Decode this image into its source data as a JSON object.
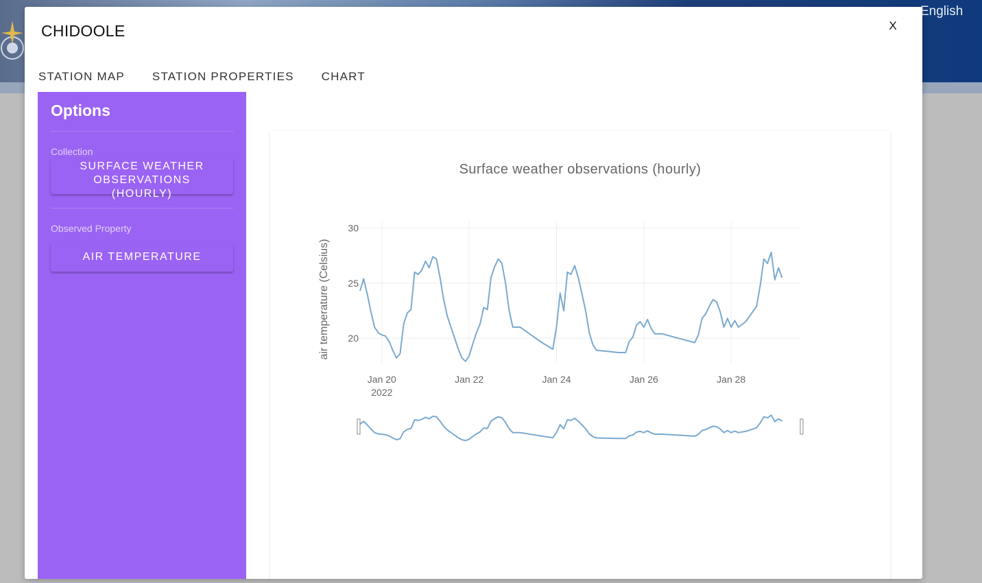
{
  "background": {
    "language": "English"
  },
  "modal": {
    "title": "CHIDOOLE",
    "close_label": "X",
    "tabs": [
      {
        "label": "STATION MAP"
      },
      {
        "label": "STATION PROPERTIES"
      },
      {
        "label": "CHART"
      }
    ]
  },
  "sidebar": {
    "title": "Options",
    "collection_label": "Collection",
    "collection_value": "SURFACE WEATHER OBSERVATIONS (HOURLY)",
    "property_label": "Observed Property",
    "property_value": "AIR TEMPERATURE"
  },
  "colors": {
    "sidebar": "#9b63f3",
    "line": "#7aa9cf"
  },
  "chart_data": {
    "type": "line",
    "title": "Surface weather observations (hourly)",
    "xlabel": "",
    "ylabel": "air temperature (Celsius)",
    "x_ticks": [
      {
        "value": "2022-01-20",
        "label": "Jan 20",
        "sublabel": "2022"
      },
      {
        "value": "2022-01-22",
        "label": "Jan 22",
        "sublabel": ""
      },
      {
        "value": "2022-01-24",
        "label": "Jan 24",
        "sublabel": ""
      },
      {
        "value": "2022-01-26",
        "label": "Jan 26",
        "sublabel": ""
      },
      {
        "value": "2022-01-28",
        "label": "Jan 28",
        "sublabel": ""
      }
    ],
    "y_ticks": [
      20,
      25,
      30
    ],
    "xlim": [
      "2022-01-19T12:00",
      "2022-01-29T14:00"
    ],
    "ylim": [
      17.7,
      30.6
    ],
    "grid": true,
    "has_range_slider": true,
    "series": [
      {
        "values": [
          [
            "2022-01-19T12:00",
            24.3
          ],
          [
            "2022-01-19T14:00",
            25.4
          ],
          [
            "2022-01-19T16:00",
            24.0
          ],
          [
            "2022-01-19T18:00",
            22.4
          ],
          [
            "2022-01-19T20:00",
            21.0
          ],
          [
            "2022-01-19T22:00",
            20.5
          ],
          [
            "2022-01-20T00:00",
            20.3
          ],
          [
            "2022-01-20T02:00",
            20.2
          ],
          [
            "2022-01-20T04:00",
            19.7
          ],
          [
            "2022-01-20T06:00",
            18.9
          ],
          [
            "2022-01-20T08:00",
            18.2
          ],
          [
            "2022-01-20T10:00",
            18.6
          ],
          [
            "2022-01-20T12:00",
            21.3
          ],
          [
            "2022-01-20T14:00",
            22.3
          ],
          [
            "2022-01-20T16:00",
            22.6
          ],
          [
            "2022-01-20T18:00",
            26.0
          ],
          [
            "2022-01-20T20:00",
            25.8
          ],
          [
            "2022-01-20T22:00",
            26.2
          ],
          [
            "2022-01-21T00:00",
            27.0
          ],
          [
            "2022-01-21T02:00",
            26.4
          ],
          [
            "2022-01-21T04:00",
            27.4
          ],
          [
            "2022-01-21T06:00",
            27.2
          ],
          [
            "2022-01-21T08:00",
            25.5
          ],
          [
            "2022-01-21T10:00",
            23.5
          ],
          [
            "2022-01-21T12:00",
            22.0
          ],
          [
            "2022-01-21T14:00",
            21.0
          ],
          [
            "2022-01-21T16:00",
            20.0
          ],
          [
            "2022-01-21T18:00",
            19.0
          ],
          [
            "2022-01-21T20:00",
            18.2
          ],
          [
            "2022-01-21T22:00",
            17.9
          ],
          [
            "2022-01-22T00:00",
            18.4
          ],
          [
            "2022-01-22T02:00",
            19.5
          ],
          [
            "2022-01-22T04:00",
            20.5
          ],
          [
            "2022-01-22T06:00",
            21.3
          ],
          [
            "2022-01-22T08:00",
            22.8
          ],
          [
            "2022-01-22T10:00",
            22.6
          ],
          [
            "2022-01-22T12:00",
            25.5
          ],
          [
            "2022-01-22T14:00",
            26.5
          ],
          [
            "2022-01-22T16:00",
            27.2
          ],
          [
            "2022-01-22T18:00",
            26.8
          ],
          [
            "2022-01-22T20:00",
            25.0
          ],
          [
            "2022-01-22T22:00",
            22.5
          ],
          [
            "2022-01-23T00:00",
            21.0
          ],
          [
            "2022-01-23T04:00",
            21.0
          ],
          [
            "2022-01-23T10:00",
            20.3
          ],
          [
            "2022-01-23T16:00",
            19.6
          ],
          [
            "2022-01-23T22:00",
            19.0
          ],
          [
            "2022-01-24T00:00",
            21.0
          ],
          [
            "2022-01-24T02:00",
            24.1
          ],
          [
            "2022-01-24T04:00",
            22.5
          ],
          [
            "2022-01-24T06:00",
            26.0
          ],
          [
            "2022-01-24T08:00",
            25.8
          ],
          [
            "2022-01-24T10:00",
            26.6
          ],
          [
            "2022-01-24T12:00",
            25.5
          ],
          [
            "2022-01-24T14:00",
            24.0
          ],
          [
            "2022-01-24T16:00",
            22.5
          ],
          [
            "2022-01-24T18:00",
            20.5
          ],
          [
            "2022-01-24T20:00",
            19.4
          ],
          [
            "2022-01-24T22:00",
            18.9
          ],
          [
            "2022-01-25T04:00",
            18.8
          ],
          [
            "2022-01-25T10:00",
            18.7
          ],
          [
            "2022-01-25T14:00",
            18.7
          ],
          [
            "2022-01-25T16:00",
            19.7
          ],
          [
            "2022-01-25T18:00",
            20.1
          ],
          [
            "2022-01-25T20:00",
            21.2
          ],
          [
            "2022-01-25T22:00",
            21.5
          ],
          [
            "2022-01-26T00:00",
            21.0
          ],
          [
            "2022-01-26T02:00",
            21.7
          ],
          [
            "2022-01-26T04:00",
            20.9
          ],
          [
            "2022-01-26T06:00",
            20.4
          ],
          [
            "2022-01-26T10:00",
            20.4
          ],
          [
            "2022-01-27T04:00",
            19.6
          ],
          [
            "2022-01-27T06:00",
            20.3
          ],
          [
            "2022-01-27T08:00",
            21.8
          ],
          [
            "2022-01-27T10:00",
            22.2
          ],
          [
            "2022-01-27T12:00",
            22.9
          ],
          [
            "2022-01-27T14:00",
            23.5
          ],
          [
            "2022-01-27T16:00",
            23.3
          ],
          [
            "2022-01-27T18:00",
            22.4
          ],
          [
            "2022-01-27T20:00",
            21.0
          ],
          [
            "2022-01-27T22:00",
            21.8
          ],
          [
            "2022-01-28T00:00",
            21.0
          ],
          [
            "2022-01-28T02:00",
            21.6
          ],
          [
            "2022-01-28T04:00",
            21.0
          ],
          [
            "2022-01-28T08:00",
            21.5
          ],
          [
            "2022-01-28T14:00",
            22.9
          ],
          [
            "2022-01-28T16:00",
            24.8
          ],
          [
            "2022-01-28T18:00",
            27.2
          ],
          [
            "2022-01-28T20:00",
            26.8
          ],
          [
            "2022-01-28T22:00",
            27.8
          ],
          [
            "2022-01-29T00:00",
            25.3
          ],
          [
            "2022-01-29T02:00",
            26.4
          ],
          [
            "2022-01-29T04:00",
            25.5
          ]
        ]
      }
    ]
  }
}
